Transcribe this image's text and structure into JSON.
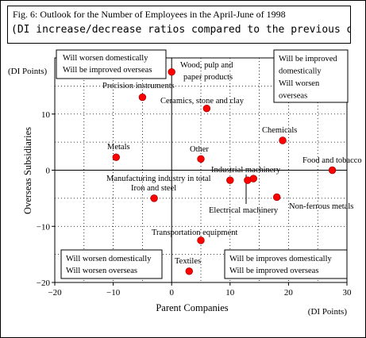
{
  "title": {
    "line1": "Fig. 6: Outlook for the Number of Employees in the April-June of 1998",
    "line2": "(DI increase/decrease ratios compared to the previous quart"
  },
  "chart_data": {
    "type": "scatter",
    "xlabel": "Parent Companies",
    "ylabel": "Overseas Subsidiaries",
    "xunit": "(DI Points)",
    "yunit": "(DI Points)",
    "xlim": [
      -20,
      30
    ],
    "ylim": [
      -20,
      20
    ],
    "xticks": [
      -20,
      -10,
      0,
      10,
      20,
      30
    ],
    "yticks": [
      -20,
      -10,
      0,
      10
    ],
    "xtick_labels": [
      "−20",
      "−10",
      "0",
      "10",
      "20",
      "30"
    ],
    "ytick_labels": [
      "−20",
      "−10",
      "0",
      "10"
    ],
    "grid": true,
    "marker_color": "#ff0000",
    "points": [
      {
        "label": "Wood, pulp and paper products",
        "x": 0,
        "y": 17.5
      },
      {
        "label": "Precision instruments",
        "x": -5,
        "y": 13
      },
      {
        "label": "Ceramics, stone and clay",
        "x": 6,
        "y": 11
      },
      {
        "label": "Chemicals",
        "x": 19,
        "y": 5.3
      },
      {
        "label": "Metals",
        "x": -9.5,
        "y": 2.3
      },
      {
        "label": "Other",
        "x": 5,
        "y": 2
      },
      {
        "label": "Food and tobacco",
        "x": 27.5,
        "y": 0
      },
      {
        "label": "Manufacturing industry in total",
        "x": 10,
        "y": -1.8
      },
      {
        "label": "Industrial machinery",
        "x": 14,
        "y": -1.5
      },
      {
        "label": "Electrical machinery",
        "x": 13,
        "y": -1.8
      },
      {
        "label": "Iron and steel",
        "x": -3,
        "y": -5
      },
      {
        "label": "Non-ferrous metals",
        "x": 18,
        "y": -4.8
      },
      {
        "label": "Transportation equipment",
        "x": 5,
        "y": -12.5
      },
      {
        "label": "Textiles",
        "x": 3,
        "y": -18
      }
    ],
    "quadrant_notes": {
      "top_left": [
        "Will worsen domestically",
        "Will be improved overseas"
      ],
      "top_right": [
        "Will be improved",
        "domestically",
        "Will worsen",
        "overseas"
      ],
      "bottom_left": [
        "Will worsen domestically",
        "Will worsen overseas"
      ],
      "bottom_right": [
        "Will be improves domestically",
        "Will be improved overseas"
      ]
    }
  }
}
